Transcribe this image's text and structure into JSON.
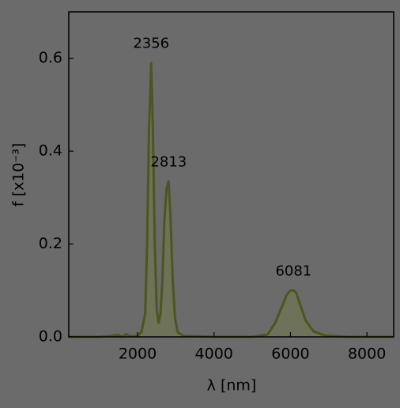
{
  "chart_data": {
    "type": "area",
    "xlabel": "λ [nm]",
    "ylabel": "f [x10⁻³]",
    "x": [
      200,
      1000,
      1300,
      1500,
      1600,
      1700,
      1800,
      2000,
      2100,
      2200,
      2250,
      2300,
      2356,
      2400,
      2450,
      2500,
      2550,
      2600,
      2650,
      2700,
      2760,
      2813,
      2860,
      2920,
      2980,
      3050,
      3200,
      4000,
      5000,
      5400,
      5600,
      5800,
      5900,
      6000,
      6081,
      6150,
      6250,
      6400,
      6600,
      6900,
      7500,
      8700
    ],
    "series": [
      {
        "color": "#4d5520",
        "fill": "#6f7357",
        "values": [
          0,
          0,
          0.002,
          0.004,
          0,
          0.006,
          0.001,
          0.002,
          0.01,
          0.05,
          0.2,
          0.45,
          0.59,
          0.45,
          0.2,
          0.06,
          0.03,
          0.05,
          0.12,
          0.25,
          0.32,
          0.335,
          0.26,
          0.12,
          0.04,
          0.01,
          0.002,
          0,
          0,
          0.005,
          0.03,
          0.07,
          0.09,
          0.1,
          0.1,
          0.095,
          0.07,
          0.035,
          0.012,
          0.003,
          0,
          0
        ]
      }
    ],
    "annotations": [
      {
        "text": "2356",
        "x": 2356,
        "y": 0.59
      },
      {
        "text": "2813",
        "x": 2813,
        "y": 0.335
      },
      {
        "text": "6081",
        "x": 6081,
        "y": 0.1
      }
    ],
    "xlim": [
      200,
      8700
    ],
    "ylim": [
      0,
      0.7
    ],
    "xticks": [
      2000,
      4000,
      6000,
      8000
    ],
    "yticks": [
      {
        "value": 0,
        "label": "0.0"
      },
      {
        "value": 0.2,
        "label": "0.2"
      },
      {
        "value": 0.4,
        "label": "0.4"
      },
      {
        "value": 0.6,
        "label": "0.6"
      }
    ]
  }
}
